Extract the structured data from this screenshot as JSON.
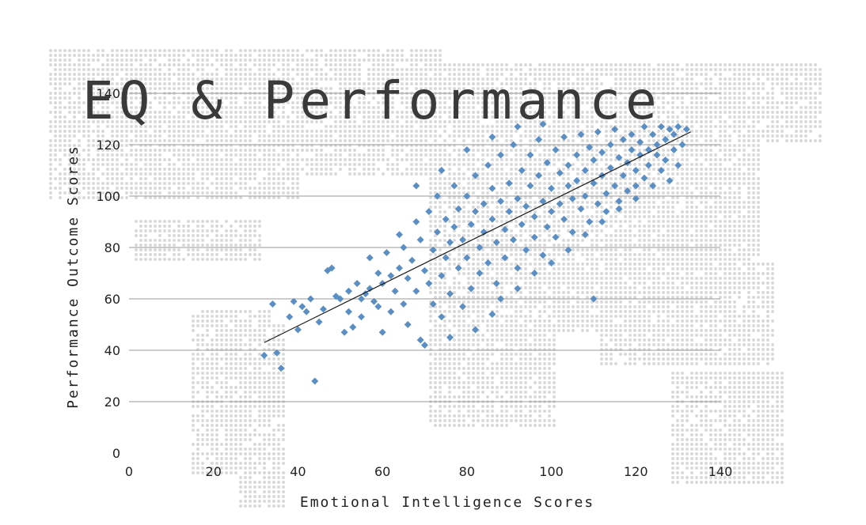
{
  "chart_data": {
    "type": "scatter",
    "title": "EQ & Performance",
    "xlabel": "Emotional Intelligence Scores",
    "ylabel": "Performance Outcome Scores",
    "xlim": [
      0,
      140
    ],
    "ylim": [
      0,
      140
    ],
    "x_ticks": [
      0,
      20,
      40,
      60,
      80,
      100,
      120,
      140
    ],
    "y_ticks": [
      0,
      20,
      40,
      60,
      80,
      100,
      120,
      140
    ],
    "grid": "horizontal",
    "legend": "none",
    "background": "dotted world map",
    "colors": {
      "points": "#5b8fc4",
      "trendline": "#1a1a1a",
      "grid": "#9a9a9a",
      "map_dots": "#d9d9d9"
    },
    "trendline": {
      "x": [
        32,
        133
      ],
      "y": [
        43,
        125
      ]
    },
    "series": [
      {
        "marker": "diamond",
        "points": [
          [
            32,
            38
          ],
          [
            34,
            58
          ],
          [
            35,
            39
          ],
          [
            36,
            33
          ],
          [
            38,
            53
          ],
          [
            39,
            59
          ],
          [
            40,
            48
          ],
          [
            41,
            57
          ],
          [
            42,
            55
          ],
          [
            43,
            60
          ],
          [
            44,
            28
          ],
          [
            45,
            51
          ],
          [
            46,
            56
          ],
          [
            47,
            71
          ],
          [
            48,
            72
          ],
          [
            49,
            61
          ],
          [
            50,
            60
          ],
          [
            51,
            47
          ],
          [
            52,
            63
          ],
          [
            52,
            55
          ],
          [
            53,
            49
          ],
          [
            54,
            66
          ],
          [
            55,
            60
          ],
          [
            55,
            53
          ],
          [
            56,
            62
          ],
          [
            57,
            64
          ],
          [
            57,
            76
          ],
          [
            58,
            59
          ],
          [
            59,
            57
          ],
          [
            59,
            70
          ],
          [
            60,
            47
          ],
          [
            60,
            66
          ],
          [
            61,
            78
          ],
          [
            62,
            69
          ],
          [
            62,
            55
          ],
          [
            63,
            63
          ],
          [
            64,
            85
          ],
          [
            64,
            72
          ],
          [
            65,
            58
          ],
          [
            65,
            80
          ],
          [
            66,
            68
          ],
          [
            66,
            50
          ],
          [
            67,
            75
          ],
          [
            68,
            90
          ],
          [
            68,
            63
          ],
          [
            69,
            83
          ],
          [
            69,
            44
          ],
          [
            70,
            71
          ],
          [
            71,
            66
          ],
          [
            71,
            94
          ],
          [
            72,
            79
          ],
          [
            72,
            58
          ],
          [
            73,
            86
          ],
          [
            73,
            100
          ],
          [
            74,
            69
          ],
          [
            74,
            53
          ],
          [
            75,
            91
          ],
          [
            75,
            76
          ],
          [
            76,
            82
          ],
          [
            76,
            62
          ],
          [
            77,
            104
          ],
          [
            77,
            88
          ],
          [
            78,
            72
          ],
          [
            78,
            95
          ],
          [
            79,
            83
          ],
          [
            79,
            57
          ],
          [
            80,
            100
          ],
          [
            80,
            76
          ],
          [
            81,
            89
          ],
          [
            81,
            64
          ],
          [
            82,
            108
          ],
          [
            82,
            94
          ],
          [
            83,
            80
          ],
          [
            83,
            70
          ],
          [
            84,
            97
          ],
          [
            84,
            86
          ],
          [
            85,
            112
          ],
          [
            85,
            74
          ],
          [
            86,
            91
          ],
          [
            86,
            103
          ],
          [
            87,
            82
          ],
          [
            87,
            66
          ],
          [
            88,
            98
          ],
          [
            88,
            116
          ],
          [
            89,
            87
          ],
          [
            89,
            76
          ],
          [
            90,
            105
          ],
          [
            90,
            94
          ],
          [
            91,
            83
          ],
          [
            91,
            120
          ],
          [
            92,
            99
          ],
          [
            92,
            72
          ],
          [
            93,
            110
          ],
          [
            93,
            89
          ],
          [
            94,
            96
          ],
          [
            94,
            79
          ],
          [
            95,
            116
          ],
          [
            95,
            104
          ],
          [
            96,
            92
          ],
          [
            96,
            84
          ],
          [
            97,
            108
          ],
          [
            97,
            122
          ],
          [
            98,
            98
          ],
          [
            98,
            77
          ],
          [
            99,
            113
          ],
          [
            99,
            88
          ],
          [
            100,
            103
          ],
          [
            100,
            94
          ],
          [
            101,
            118
          ],
          [
            101,
            84
          ],
          [
            102,
            109
          ],
          [
            102,
            97
          ],
          [
            103,
            123
          ],
          [
            103,
            91
          ],
          [
            104,
            104
          ],
          [
            104,
            112
          ],
          [
            105,
            99
          ],
          [
            105,
            86
          ],
          [
            106,
            116
          ],
          [
            106,
            106
          ],
          [
            107,
            95
          ],
          [
            107,
            124
          ],
          [
            108,
            110
          ],
          [
            108,
            100
          ],
          [
            109,
            119
          ],
          [
            109,
            90
          ],
          [
            110,
            105
          ],
          [
            110,
            114
          ],
          [
            111,
            97
          ],
          [
            111,
            125
          ],
          [
            112,
            108
          ],
          [
            112,
            117
          ],
          [
            113,
            101
          ],
          [
            113,
            94
          ],
          [
            114,
            120
          ],
          [
            114,
            111
          ],
          [
            115,
            104
          ],
          [
            115,
            126
          ],
          [
            116,
            115
          ],
          [
            116,
            98
          ],
          [
            117,
            122
          ],
          [
            117,
            108
          ],
          [
            118,
            113
          ],
          [
            118,
            102
          ],
          [
            119,
            124
          ],
          [
            119,
            118
          ],
          [
            120,
            110
          ],
          [
            120,
            104
          ],
          [
            121,
            121
          ],
          [
            121,
            116
          ],
          [
            122,
            127
          ],
          [
            122,
            107
          ],
          [
            123,
            118
          ],
          [
            123,
            112
          ],
          [
            124,
            124
          ],
          [
            124,
            104
          ],
          [
            125,
            116
          ],
          [
            125,
            120
          ],
          [
            126,
            127
          ],
          [
            126,
            110
          ],
          [
            127,
            122
          ],
          [
            127,
            114
          ],
          [
            128,
            126
          ],
          [
            128,
            106
          ],
          [
            129,
            118
          ],
          [
            129,
            124
          ],
          [
            130,
            127
          ],
          [
            130,
            112
          ],
          [
            131,
            120
          ],
          [
            132,
            126
          ],
          [
            88,
            60
          ],
          [
            92,
            64
          ],
          [
            96,
            70
          ],
          [
            100,
            74
          ],
          [
            104,
            79
          ],
          [
            108,
            85
          ],
          [
            112,
            90
          ],
          [
            116,
            95
          ],
          [
            120,
            99
          ],
          [
            110,
            60
          ],
          [
            68,
            104
          ],
          [
            74,
            110
          ],
          [
            80,
            118
          ],
          [
            86,
            123
          ],
          [
            92,
            127
          ],
          [
            98,
            128
          ],
          [
            70,
            42
          ],
          [
            76,
            45
          ],
          [
            82,
            48
          ],
          [
            86,
            54
          ]
        ]
      }
    ]
  }
}
